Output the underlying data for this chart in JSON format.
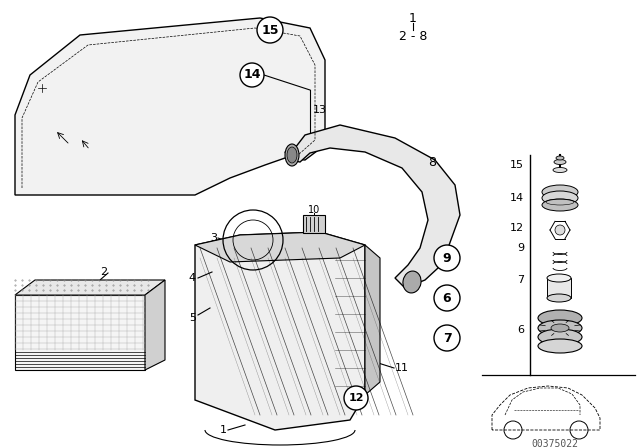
{
  "bg_color": "#ffffff",
  "line_color": "#000000",
  "watermark": "00375022",
  "fig_width": 6.4,
  "fig_height": 4.48,
  "dpi": 100
}
